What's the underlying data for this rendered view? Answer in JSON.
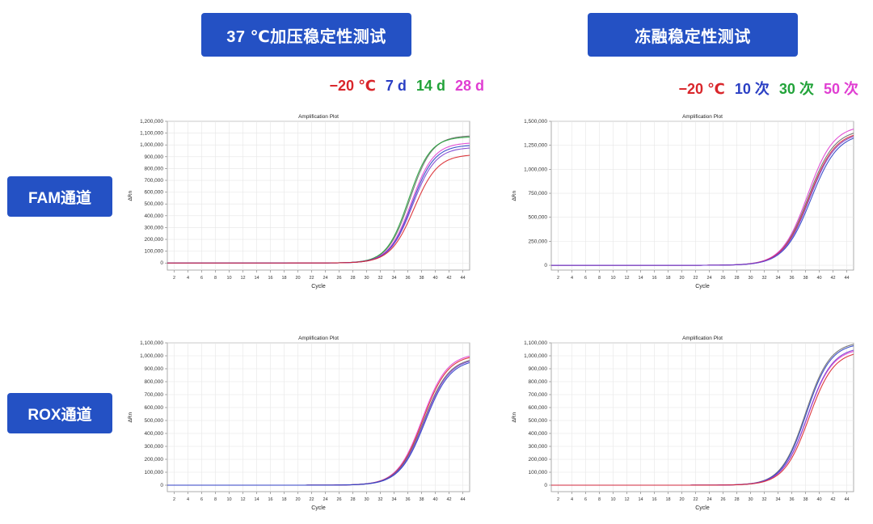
{
  "headers": {
    "left": "37 ℃加压稳定性测试",
    "right": "冻融稳定性测试"
  },
  "row_labels": {
    "fam": "FAM通道",
    "rox": "ROX通道"
  },
  "legends": {
    "left": [
      {
        "label": "−20 ℃",
        "color": "#d9262b"
      },
      {
        "label": "7 d",
        "color": "#2a3fc4"
      },
      {
        "label": "14 d",
        "color": "#22a33a"
      },
      {
        "label": "28 d",
        "color": "#e03ed2"
      }
    ],
    "right": [
      {
        "label": "−20 ℃",
        "color": "#d9262b"
      },
      {
        "label": "10 次",
        "color": "#2a3fc4"
      },
      {
        "label": "30 次",
        "color": "#22a33a"
      },
      {
        "label": "50 次",
        "color": "#e03ed2"
      }
    ]
  },
  "chart_data": [
    {
      "type": "line",
      "title": "Amplification Plot",
      "xlabel": "Cycle",
      "ylabel": "ΔRn",
      "xlim": [
        1,
        45
      ],
      "xticks": [
        2,
        4,
        6,
        8,
        10,
        12,
        14,
        16,
        18,
        20,
        22,
        24,
        26,
        28,
        30,
        32,
        34,
        36,
        38,
        40,
        42,
        44
      ],
      "ylim": [
        -60000,
        1200000
      ],
      "yticks": [
        0,
        100000,
        200000,
        300000,
        400000,
        500000,
        600000,
        700000,
        800000,
        900000,
        1000000,
        1100000,
        1200000
      ],
      "yticklabels": [
        "0",
        "100,000",
        "200,000",
        "300,000",
        "400,000",
        "500,000",
        "600,000",
        "700,000",
        "800,000",
        "900,000",
        "1,000,000",
        "1,100,000",
        "1,200,000"
      ],
      "grid": true,
      "series": [
        {
          "color": "#6a6a6a",
          "ct": 36.3,
          "plateau": 1080000,
          "k": 0.62
        },
        {
          "color": "#22a33a",
          "ct": 36.1,
          "plateau": 1070000,
          "k": 0.63
        },
        {
          "color": "#e03ed2",
          "ct": 36.5,
          "plateau": 1020000,
          "k": 0.61
        },
        {
          "color": "#2a3fc4",
          "ct": 36.6,
          "plateau": 1000000,
          "k": 0.61
        },
        {
          "color": "#7b3fd0",
          "ct": 36.7,
          "plateau": 980000,
          "k": 0.6
        },
        {
          "color": "#d9262b",
          "ct": 36.9,
          "plateau": 920000,
          "k": 0.58
        }
      ]
    },
    {
      "type": "line",
      "title": "Amplification Plot",
      "xlabel": "Cycle",
      "ylabel": "ΔRn",
      "xlim": [
        1,
        45
      ],
      "xticks": [
        2,
        4,
        6,
        8,
        10,
        12,
        14,
        16,
        18,
        20,
        22,
        24,
        26,
        28,
        30,
        32,
        34,
        36,
        38,
        40,
        42,
        44
      ],
      "ylim": [
        -50000,
        1500000
      ],
      "yticks": [
        0,
        250000,
        500000,
        750000,
        1000000,
        1250000,
        1500000
      ],
      "yticklabels": [
        "0",
        "250,000",
        "500,000",
        "750,000",
        "1,000,000",
        "1,250,000",
        "1,500,000"
      ],
      "grid": true,
      "series": [
        {
          "color": "#6a6a6a",
          "ct": 38.4,
          "plateau": 1420000,
          "k": 0.52
        },
        {
          "color": "#e03ed2",
          "ct": 38.3,
          "plateau": 1460000,
          "k": 0.53
        },
        {
          "color": "#d9262b",
          "ct": 38.5,
          "plateau": 1400000,
          "k": 0.52
        },
        {
          "color": "#2a3fc4",
          "ct": 38.8,
          "plateau": 1380000,
          "k": 0.51
        },
        {
          "color": "#7b3fd0",
          "ct": 38.6,
          "plateau": 1390000,
          "k": 0.52
        }
      ]
    },
    {
      "type": "line",
      "title": "Amplification Plot",
      "xlabel": "Cycle",
      "ylabel": "ΔRn",
      "xlim": [
        1,
        45
      ],
      "xticks": [
        2,
        4,
        6,
        8,
        10,
        12,
        14,
        16,
        18,
        20,
        22,
        24,
        26,
        28,
        30,
        32,
        34,
        36,
        38,
        40,
        42,
        44
      ],
      "ylim": [
        -50000,
        1100000
      ],
      "yticks": [
        0,
        100000,
        200000,
        300000,
        400000,
        500000,
        600000,
        700000,
        800000,
        900000,
        1000000,
        1100000
      ],
      "yticklabels": [
        "0",
        "100,000",
        "200,000",
        "300,000",
        "400,000",
        "500,000",
        "600,000",
        "700,000",
        "800,000",
        "900,000",
        "1,000,000",
        "1,100,000"
      ],
      "grid": true,
      "series": [
        {
          "color": "#e03ed2",
          "ct": 38.1,
          "plateau": 1020000,
          "k": 0.55
        },
        {
          "color": "#d9262b",
          "ct": 38.2,
          "plateau": 1010000,
          "k": 0.55
        },
        {
          "color": "#6a6a6a",
          "ct": 38.3,
          "plateau": 990000,
          "k": 0.54
        },
        {
          "color": "#7b3fd0",
          "ct": 38.4,
          "plateau": 985000,
          "k": 0.54
        },
        {
          "color": "#2a3fc4",
          "ct": 38.5,
          "plateau": 975000,
          "k": 0.54
        }
      ]
    },
    {
      "type": "line",
      "title": "Amplification Plot",
      "xlabel": "Cycle",
      "ylabel": "ΔRn",
      "xlim": [
        1,
        45
      ],
      "xticks": [
        2,
        4,
        6,
        8,
        10,
        12,
        14,
        16,
        18,
        20,
        22,
        24,
        26,
        28,
        30,
        32,
        34,
        36,
        38,
        40,
        42,
        44
      ],
      "ylim": [
        -50000,
        1100000
      ],
      "yticks": [
        0,
        100000,
        200000,
        300000,
        400000,
        500000,
        600000,
        700000,
        800000,
        900000,
        1000000,
        1100000
      ],
      "yticklabels": [
        "0",
        "100,000",
        "200,000",
        "300,000",
        "400,000",
        "500,000",
        "600,000",
        "700,000",
        "800,000",
        "900,000",
        "1,000,000",
        "1,100,000"
      ],
      "grid": true,
      "series": [
        {
          "color": "#6a6a6a",
          "ct": 38.0,
          "plateau": 1110000,
          "k": 0.56
        },
        {
          "color": "#2a3fc4",
          "ct": 38.1,
          "plateau": 1100000,
          "k": 0.56
        },
        {
          "color": "#e03ed2",
          "ct": 38.3,
          "plateau": 1060000,
          "k": 0.55
        },
        {
          "color": "#7b3fd0",
          "ct": 38.3,
          "plateau": 1070000,
          "k": 0.55
        },
        {
          "color": "#d9262b",
          "ct": 38.5,
          "plateau": 1040000,
          "k": 0.55
        }
      ]
    }
  ]
}
